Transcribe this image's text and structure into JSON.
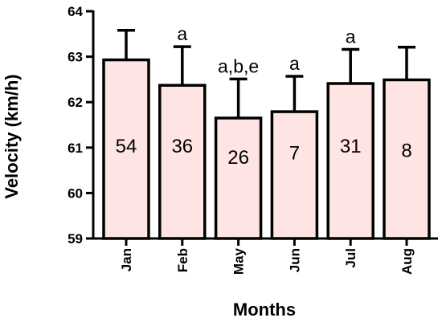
{
  "chart_data": {
    "type": "bar",
    "title": "",
    "xlabel": "Months",
    "ylabel": "Velocity (km/h)",
    "ylim": [
      59,
      64
    ],
    "yticks": [
      59,
      60,
      61,
      62,
      63,
      64
    ],
    "categories": [
      "Jan",
      "Feb",
      "May",
      "Jun",
      "Jul",
      "Aug"
    ],
    "values": [
      62.93,
      62.37,
      61.65,
      61.79,
      62.41,
      62.49
    ],
    "error_upper": [
      63.58,
      63.22,
      62.51,
      62.57,
      63.16,
      63.21
    ],
    "counts": [
      "54",
      "36",
      "26",
      "7",
      "31",
      "8"
    ],
    "annotations": [
      "",
      "a",
      "a,b,e",
      "a",
      "a",
      ""
    ],
    "colors": {
      "bar_fill": "#ffe4e4",
      "stroke": "#000000"
    },
    "grid": false
  }
}
